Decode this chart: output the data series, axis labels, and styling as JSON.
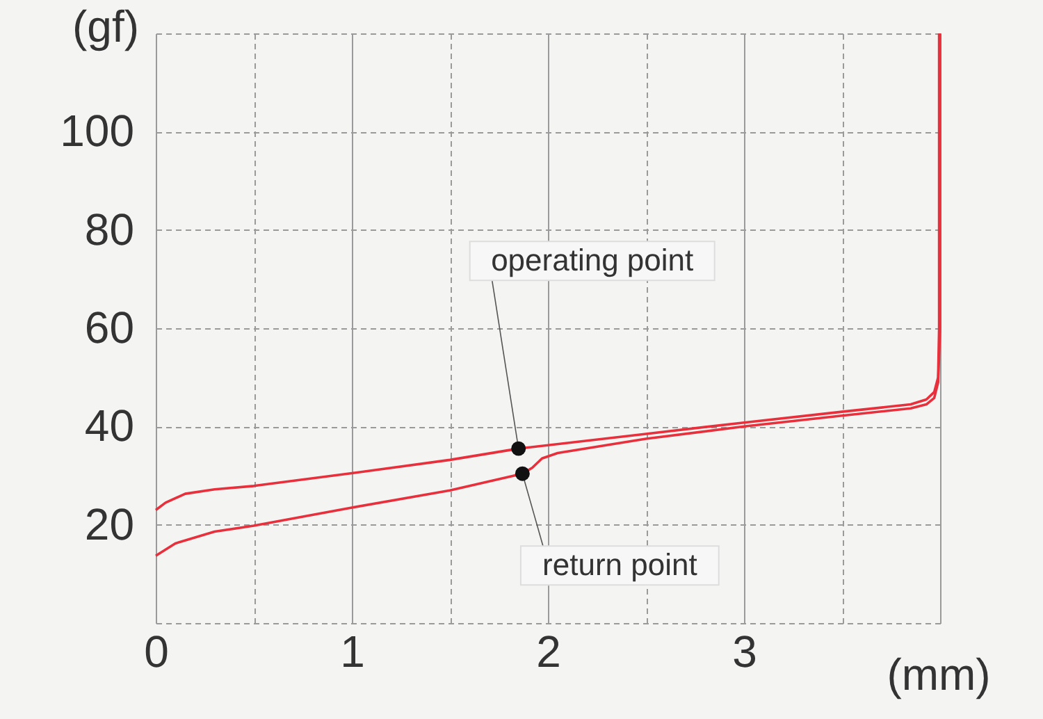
{
  "chart_data": {
    "type": "line",
    "xlabel": "(mm)",
    "ylabel": "(gf)",
    "xlim": [
      0,
      4
    ],
    "ylim": [
      0,
      120
    ],
    "xticks": [
      0,
      {
        "value": 0.5,
        "label": null
      },
      1,
      {
        "value": 1.5,
        "label": null
      },
      2,
      {
        "value": 2.5,
        "label": null
      },
      3,
      {
        "value": 3.5,
        "label": null
      },
      {
        "value": 4,
        "label": null
      }
    ],
    "yticks": [
      {
        "value": 0,
        "label": null
      },
      20,
      40,
      60,
      80,
      100,
      {
        "value": 120,
        "label": null
      }
    ],
    "grid": true,
    "marker": "none",
    "line_style": "solid",
    "series": [
      {
        "color": "#e8303c",
        "x": [
          0,
          0.05,
          0.15,
          0.3,
          0.5,
          1.0,
          1.5,
          1.85,
          2.5,
          3.0,
          3.5,
          3.85,
          3.93,
          3.97,
          3.99,
          3.995,
          3.995
        ],
        "values": [
          23,
          24.5,
          26.3,
          27.2,
          27.9,
          30.5,
          33.2,
          35.5,
          38.5,
          40.8,
          43,
          44.5,
          45.5,
          47,
          50,
          60,
          120
        ]
      },
      {
        "color": "#e8303c",
        "x": [
          0,
          0.1,
          0.3,
          0.5,
          1.0,
          1.5,
          1.87,
          1.92,
          1.97,
          2.05,
          2.5,
          3.0,
          3.5,
          3.85,
          3.93,
          3.97,
          3.99,
          4.0,
          4.0
        ],
        "values": [
          13.7,
          16.2,
          18.6,
          19.8,
          23.5,
          27,
          30.4,
          31.6,
          33.5,
          34.6,
          37.5,
          40,
          42.2,
          43.7,
          44.5,
          45.8,
          49,
          60,
          120
        ]
      }
    ],
    "annotations": [
      {
        "text": "operating point",
        "x": 1.85,
        "y": 35.5
      },
      {
        "text": "return point",
        "x": 1.87,
        "y": 30.4
      }
    ]
  }
}
